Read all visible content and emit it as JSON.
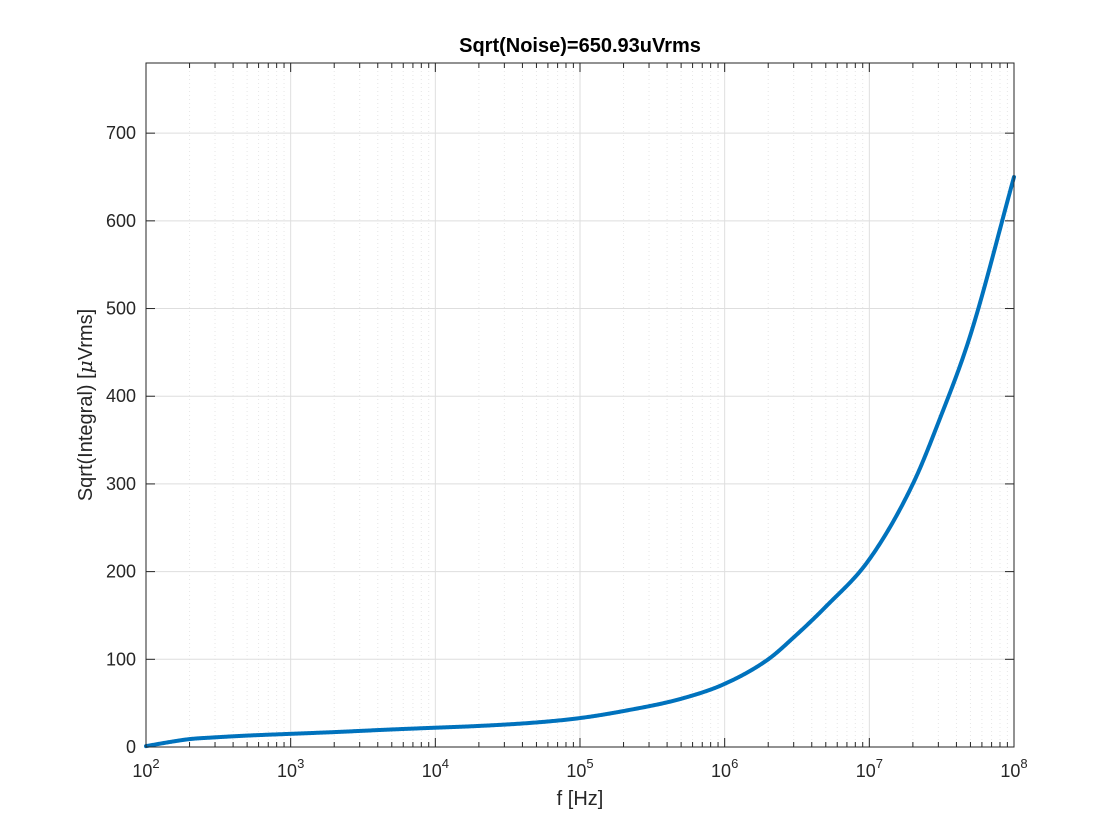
{
  "chart_data": {
    "type": "line",
    "title": "Sqrt(Noise)=650.93uVrms",
    "xlabel": "f [Hz]",
    "ylabel_text": "Sqrt(Integral) [",
    "ylabel_mu": "μ",
    "ylabel_unit": "Vrms]",
    "x_scale": "log",
    "xlim": [
      100,
      100000000
    ],
    "ylim": [
      0,
      780
    ],
    "grid": "on (major and minor)",
    "x_ticks": [
      {
        "base": "10",
        "exp": "2"
      },
      {
        "base": "10",
        "exp": "3"
      },
      {
        "base": "10",
        "exp": "4"
      },
      {
        "base": "10",
        "exp": "5"
      },
      {
        "base": "10",
        "exp": "6"
      },
      {
        "base": "10",
        "exp": "7"
      },
      {
        "base": "10",
        "exp": "8"
      }
    ],
    "y_ticks": [
      "0",
      "100",
      "200",
      "300",
      "400",
      "500",
      "600",
      "700"
    ],
    "line_color": "#0072BD",
    "series": [
      {
        "x": [
          100,
          150,
          200,
          300,
          500,
          1000,
          2000,
          5000,
          10000,
          20000,
          50000,
          100000,
          200000,
          500000,
          1000000,
          2000000,
          3000000,
          5000000,
          10000000,
          20000000,
          30000000,
          50000000,
          100000000
        ],
        "values": [
          1,
          6,
          9,
          11,
          13,
          15,
          17,
          20,
          22,
          24,
          28,
          33,
          41,
          55,
          72,
          100,
          125,
          160,
          214,
          300,
          370,
          470,
          650
        ]
      }
    ]
  }
}
